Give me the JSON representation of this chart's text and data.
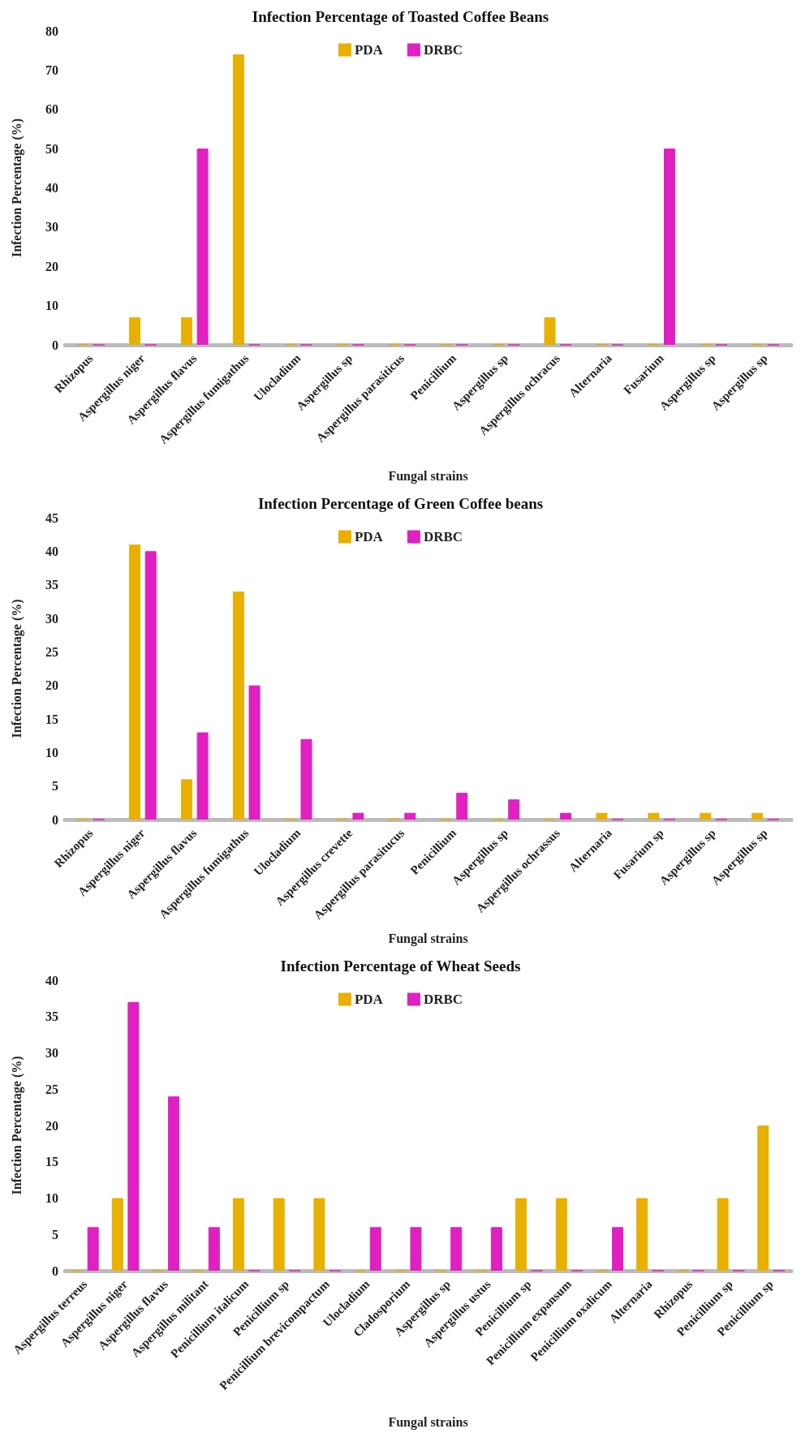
{
  "chart_data": [
    {
      "type": "bar",
      "title": "Infection Percentage of Toasted Coffee Beans",
      "xlabel": "Fungal strains",
      "ylabel": "Infection Percentage (%)",
      "categories": [
        "Rhizopus",
        "Aspergillus niger",
        "Aspergillus flavus",
        "Aspergillus fumigathus",
        "Ulocladium",
        "Aspergillus sp",
        "Aspergillus parasiticus",
        "Penicillium",
        "Aspergillus sp",
        "Aspergillus ochracus",
        "Alternaria",
        "Fusarium",
        "Aspergillus sp",
        "Aspergillus sp"
      ],
      "series": [
        {
          "name": "PDA",
          "color": "#e8b000",
          "values": [
            0,
            7,
            7,
            74,
            0,
            0,
            0,
            0,
            0,
            7,
            0,
            0,
            0,
            0
          ]
        },
        {
          "name": "DRBC",
          "color": "#e020c0",
          "values": [
            0,
            0,
            50,
            0,
            0,
            0,
            0,
            0,
            0,
            0,
            0,
            50,
            0,
            0
          ]
        }
      ],
      "ylim": [
        0,
        80
      ],
      "yticks": [
        0,
        10,
        20,
        30,
        40,
        50,
        60,
        70,
        80
      ],
      "legend": "top"
    },
    {
      "type": "bar",
      "title": "Infection Percentage of Green Coffee beans",
      "xlabel": "Fungal strains",
      "ylabel": "Infection Percentage (%)",
      "categories": [
        "Rhizopus",
        "Aspergillus niger",
        "Aspergillus flavus",
        "Aspergillus fumigathus",
        "Ulocladium",
        "Aspergillus crevette",
        "Aspergillus parasitucus",
        "Penicillium",
        "Aspergillus sp",
        "Aspergillus ochrassus",
        "Alternaria",
        "Fusarium sp",
        "Aspergillus sp",
        "Aspergillus sp"
      ],
      "series": [
        {
          "name": "PDA",
          "color": "#e8b000",
          "values": [
            0,
            41,
            6,
            34,
            0,
            0,
            0,
            0,
            0,
            0,
            1,
            1,
            1,
            1
          ]
        },
        {
          "name": "DRBC",
          "color": "#e020c0",
          "values": [
            0,
            40,
            13,
            20,
            12,
            1,
            1,
            4,
            3,
            1,
            0,
            0,
            0,
            0
          ]
        }
      ],
      "ylim": [
        0,
        45
      ],
      "yticks": [
        0,
        5,
        10,
        15,
        20,
        25,
        30,
        35,
        40,
        45
      ],
      "legend": "top"
    },
    {
      "type": "bar",
      "title": "Infection Percentage of Wheat Seeds",
      "xlabel": "Fungal strains",
      "ylabel": "Infection Percentage (%)",
      "categories": [
        "Aspergillus terreus",
        "Aspergillus niger",
        "Aspergillus flavus",
        "Aspergillus militant",
        "Penicillium italicum",
        "Penicillium sp",
        "Penicillium brevicompactum",
        "Ulocladium",
        "Cladosporium",
        "Aspergillus sp",
        "Aspergillus ustus",
        "Penicillium sp",
        "Penicillium expansum",
        "Penicillium oxalicum",
        "Alternaria",
        "Rhizopus",
        "Penicillium sp",
        "Penicillium sp"
      ],
      "series": [
        {
          "name": "PDA",
          "color": "#e8b000",
          "values": [
            0,
            10,
            0,
            0,
            10,
            10,
            10,
            0,
            0,
            0,
            0,
            10,
            10,
            0,
            10,
            0,
            10,
            20
          ]
        },
        {
          "name": "DRBC",
          "color": "#e020c0",
          "values": [
            6,
            37,
            24,
            6,
            0,
            0,
            0,
            6,
            6,
            6,
            6,
            0,
            0,
            6,
            0,
            0,
            0,
            0
          ]
        }
      ],
      "ylim": [
        0,
        40
      ],
      "yticks": [
        0,
        5,
        10,
        15,
        20,
        25,
        30,
        35,
        40
      ],
      "legend": "top"
    }
  ]
}
